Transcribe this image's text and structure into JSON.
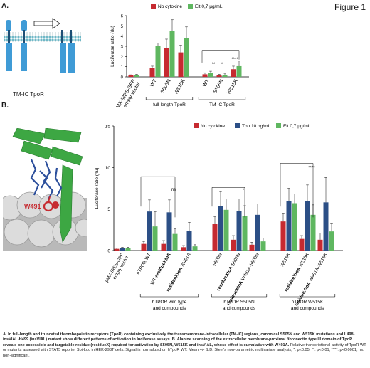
{
  "figure_title": "Figure 1",
  "panel_a_label": "A.",
  "panel_b_label": "B.",
  "schematic": {
    "tmic_label": "TM-IC TpoR"
  },
  "structure": {
    "residue_label": "W491"
  },
  "colors": {
    "red": "#c62a30",
    "green": "#5fb760",
    "blue": "#2c4f86",
    "membrane": "#6fb8c6",
    "receptor": "#3f9bd6"
  },
  "chart_data": [
    {
      "id": "panel-a",
      "type": "bar",
      "ylabel": "Luciferase ratio (rlu)",
      "ylim": [
        0,
        6
      ],
      "yticks": [
        0,
        1,
        2,
        3,
        4,
        5,
        6
      ],
      "categories": [
        "pMX-IRES-GFP empty vector",
        "WT",
        "S505N",
        "W515K",
        "WT",
        "S505N",
        "W515K"
      ],
      "series": [
        {
          "name": "No cytokine",
          "color": "#c62a30",
          "values": [
            0.15,
            0.9,
            2.8,
            2.4,
            0.25,
            0.15,
            0.75
          ],
          "errors": [
            0.05,
            0.15,
            0.9,
            0.7,
            0.15,
            0.1,
            0.3
          ]
        },
        {
          "name": "Elt 0,7 µg/mL",
          "color": "#5fb760",
          "values": [
            0.2,
            3.0,
            4.5,
            3.8,
            0.35,
            0.2,
            1.05
          ],
          "errors": [
            0.05,
            0.3,
            1.1,
            1.1,
            0.2,
            0.15,
            0.5
          ]
        }
      ],
      "groups": [
        {
          "label": "full-length TpoR",
          "from": 1,
          "to": 3
        },
        {
          "label": "TM-IC TpoR",
          "from": 4,
          "to": 6
        }
      ],
      "significance": [
        "**",
        "*",
        "****"
      ]
    },
    {
      "id": "panel-b",
      "type": "bar",
      "ylabel": "Luciferase ratio (rlu)",
      "ylim": [
        0,
        15
      ],
      "yticks": [
        0,
        5,
        10,
        15
      ],
      "categories": [
        "pMX-IRES-GFP empty vector",
        "hTPOR WT",
        "WT-residueXtoA",
        "residueXtoA W491A",
        "S505N",
        "residueXtoA S505N",
        "residueXtoA W491A-S505N",
        "W515K",
        "residueXtoA W515K",
        "residueXtoA W491A-W515K"
      ],
      "series": [
        {
          "name": "No cytokine",
          "color": "#c62a30",
          "values": [
            0.2,
            0.8,
            0.8,
            0.4,
            3.2,
            1.3,
            0.7,
            3.5,
            1.4,
            1.3
          ],
          "errors": [
            0.1,
            0.3,
            0.4,
            0.2,
            0.9,
            0.5,
            0.3,
            1.0,
            0.4,
            0.8
          ]
        },
        {
          "name": "Tpo 10 ng/mL",
          "color": "#2c4f86",
          "values": [
            0.3,
            4.7,
            4.6,
            2.4,
            5.4,
            4.8,
            4.3,
            6.0,
            6.0,
            5.8
          ],
          "errors": [
            0.1,
            1.4,
            1.5,
            1.0,
            1.7,
            1.4,
            1.3,
            1.5,
            1.9,
            3.0
          ]
        },
        {
          "name": "Elt 0,7 µg/mL",
          "color": "#5fb760",
          "values": [
            0.3,
            2.9,
            2.0,
            0.5,
            4.9,
            4.2,
            1.1,
            5.7,
            4.3,
            2.3
          ],
          "errors": [
            0.1,
            1.8,
            0.6,
            0.2,
            1.3,
            1.2,
            0.4,
            1.1,
            1.2,
            1.0
          ]
        }
      ],
      "groups": [
        {
          "label": "hTPOR wild type and compounds",
          "from": 1,
          "to": 3
        },
        {
          "label": "hTPOR S505N and compounds",
          "from": 4,
          "to": 6
        },
        {
          "label": "hTPOR W515K and compounds",
          "from": 7,
          "to": 9
        }
      ],
      "significance": [
        "ns",
        "*",
        "****"
      ]
    }
  ],
  "caption": {
    "a_bold": "A. In full-length and truncated thrombopoietin receptors (TpoR) containing exclusively the transmembrane-intracellular (TM-IC) regions, canonical S505N and W515K mutations and L498-insVIAL-H499 (insVIAL) mutant show different patterns of activation in luciferase assays.",
    "b_bold": " B. Alanine scanning of the extracellular membrane-proximal fibronectin type III domain of TpoR reveals one accessible and targetable residue (residueX) required for activation by S505N, W515K and insVIAL, whose effect is cumulative with W491A.",
    "rest": " Relative transcriptional activity of TpoR WT or mutants assessed with STAT5 reporter Spi-Luc in HEK-293T cells. Signal is normalized on hTpoR WT. Mean +/- S.D. Steel's non-parametric multivariate analysis; *: p<0.05; **: p<0.01; ****: p<0.0001; ns: non-significant."
  }
}
